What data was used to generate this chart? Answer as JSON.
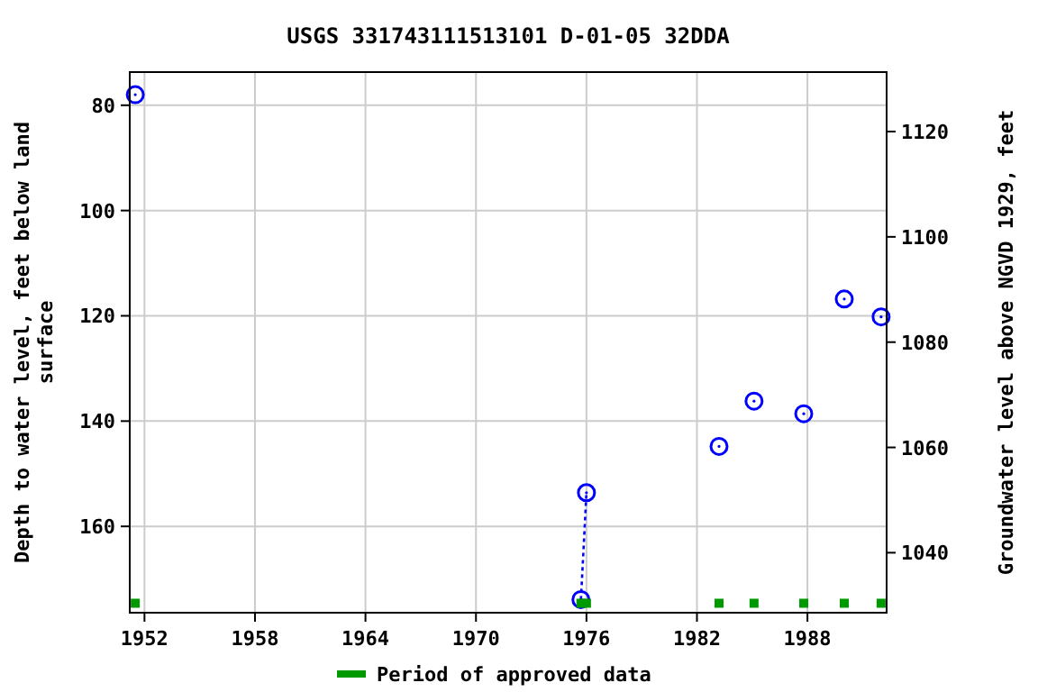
{
  "chart_data": {
    "type": "line",
    "title": "USGS 331743111513101 D-01-05 32DDA",
    "ylabel": "Depth to water level, feet below land\nsurface",
    "y2label": "Groundwater level above NGVD 1929, feet",
    "xlim": [
      1951.2,
      1992.3
    ],
    "xticks": [
      1952,
      1958,
      1964,
      1970,
      1976,
      1982,
      1988
    ],
    "ylim": [
      176.4,
      73.7
    ],
    "yticks": [
      80,
      100,
      120,
      140,
      160
    ],
    "y2lim": [
      1028.6,
      1131.3
    ],
    "y2ticks": [
      1040,
      1060,
      1080,
      1100,
      1120
    ],
    "grid": true,
    "legend": "bottom",
    "series": [
      {
        "color": "#0000ff",
        "line_style": "dotted",
        "marker": "circle",
        "x": [
          1951.5,
          1960,
          1975.7,
          1976.0,
          1980,
          1983.2,
          1984,
          1985.1,
          1986,
          1987.8,
          1989,
          1990.0,
          1991,
          1992.0
        ],
        "values": [
          78,
          null,
          173.9,
          153.6,
          null,
          144.8,
          null,
          136.2,
          null,
          138.6,
          null,
          116.8,
          null,
          120.2
        ]
      },
      {
        "type": "scatter",
        "name": "Period of approved data",
        "color": "#009900",
        "marker": "square",
        "x": [
          1951.5,
          1975.7,
          1976.0,
          1983.2,
          1985.1,
          1987.8,
          1990.0,
          1992.0
        ],
        "values": [
          174.6,
          174.6,
          174.6,
          174.6,
          174.6,
          174.6,
          174.6,
          174.6
        ]
      }
    ]
  }
}
